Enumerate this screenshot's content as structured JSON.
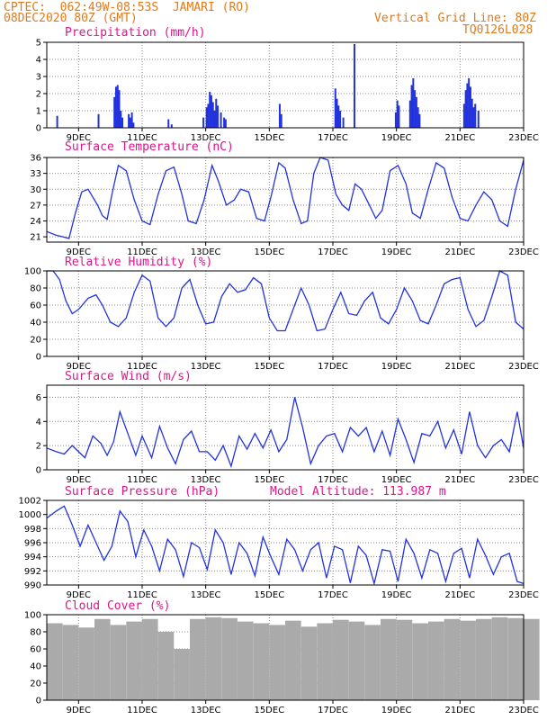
{
  "header": {
    "line1": "CPTEC:  062:49W-08:53S  JAMARI (RO)",
    "line2": "08DEC2020 80Z (GMT)",
    "grid_note": "Vertical Grid Line: 80Z",
    "code": "TQ0126L028"
  },
  "panels": {
    "precip": {
      "title": "Precipitation (mm/h)"
    },
    "temp": {
      "title": "Surface Temperature (nC)"
    },
    "rh": {
      "title": "Relative Humidity (%)"
    },
    "wind": {
      "title": "Surface Wind (m/s)"
    },
    "press": {
      "title": "Surface Pressure (hPa)",
      "altitude": "Model Altitude: 113.987 m"
    },
    "cloud": {
      "title": "Cloud Cover (%)"
    }
  },
  "colors": {
    "line": "#2233dd",
    "cloud": "#aaaaaa",
    "header": "#e07a1c",
    "title": "#e0148c"
  },
  "chart_data": [
    {
      "type": "bar",
      "title": "Precipitation (mm/h)",
      "x_ticks": [
        "9DEC",
        "11DEC",
        "13DEC",
        "15DEC",
        "17DEC",
        "19DEC",
        "21DEC",
        "23DEC"
      ],
      "ylim": [
        0,
        5
      ],
      "y_ticks": [
        0,
        1,
        2,
        3,
        4,
        5
      ],
      "x_unit": "days since 08DEC2020 00Z",
      "bars": [
        [
          0.3,
          0.7
        ],
        [
          1.6,
          0.8
        ],
        [
          2.1,
          1.8
        ],
        [
          2.15,
          2.4
        ],
        [
          2.2,
          2.5
        ],
        [
          2.25,
          2.2
        ],
        [
          2.3,
          1.0
        ],
        [
          2.35,
          0.6
        ],
        [
          2.55,
          0.8
        ],
        [
          2.6,
          0.6
        ],
        [
          2.65,
          0.9
        ],
        [
          2.7,
          0.3
        ],
        [
          3.8,
          0.5
        ],
        [
          3.9,
          0.2
        ],
        [
          4.9,
          0.6
        ],
        [
          5.0,
          1.2
        ],
        [
          5.05,
          1.4
        ],
        [
          5.1,
          2.1
        ],
        [
          5.15,
          1.9
        ],
        [
          5.2,
          1.5
        ],
        [
          5.25,
          1.0
        ],
        [
          5.3,
          1.7
        ],
        [
          5.35,
          1.3
        ],
        [
          5.45,
          0.9
        ],
        [
          5.55,
          0.6
        ],
        [
          5.6,
          0.5
        ],
        [
          7.3,
          1.4
        ],
        [
          7.35,
          0.8
        ],
        [
          9.05,
          2.3
        ],
        [
          9.1,
          1.7
        ],
        [
          9.15,
          1.3
        ],
        [
          9.2,
          1.0
        ],
        [
          9.3,
          0.6
        ],
        [
          9.65,
          4.9
        ],
        [
          10.95,
          0.9
        ],
        [
          11.0,
          1.6
        ],
        [
          11.05,
          1.3
        ],
        [
          11.4,
          1.6
        ],
        [
          11.45,
          2.5
        ],
        [
          11.5,
          2.9
        ],
        [
          11.55,
          2.2
        ],
        [
          11.6,
          1.8
        ],
        [
          11.65,
          1.2
        ],
        [
          11.7,
          0.8
        ],
        [
          13.1,
          1.4
        ],
        [
          13.15,
          2.2
        ],
        [
          13.2,
          2.6
        ],
        [
          13.25,
          2.9
        ],
        [
          13.3,
          2.4
        ],
        [
          13.35,
          1.7
        ],
        [
          13.4,
          1.2
        ],
        [
          13.45,
          1.4
        ],
        [
          13.55,
          1.0
        ]
      ]
    },
    {
      "type": "line",
      "title": "Surface Temperature (nC)",
      "x_ticks": [
        "9DEC",
        "11DEC",
        "13DEC",
        "15DEC",
        "17DEC",
        "19DEC",
        "21DEC",
        "23DEC"
      ],
      "ylim": [
        20,
        36
      ],
      "y_ticks": [
        21,
        24,
        27,
        30,
        33,
        36
      ],
      "x": [
        0,
        0.3,
        0.5,
        0.7,
        0.9,
        1.1,
        1.3,
        1.6,
        1.75,
        1.9,
        2.05,
        2.25,
        2.5,
        2.75,
        3.0,
        3.25,
        3.5,
        3.75,
        4.0,
        4.25,
        4.45,
        4.7,
        4.95,
        5.2,
        5.4,
        5.65,
        5.9,
        6.1,
        6.35,
        6.6,
        6.85,
        7.05,
        7.3,
        7.5,
        7.75,
        8.0,
        8.2,
        8.4,
        8.6,
        8.85,
        9.1,
        9.3,
        9.5,
        9.7,
        9.9,
        10.15,
        10.35,
        10.55,
        10.8,
        11.05,
        11.3,
        11.5,
        11.75,
        12.0,
        12.25,
        12.5,
        12.75,
        13.0,
        13.25,
        13.5,
        13.75,
        14.0,
        14.25,
        14.5,
        14.75,
        15.0
      ],
      "y": [
        22,
        21.3,
        21,
        20.7,
        25.5,
        29.5,
        30,
        27,
        25,
        24.3,
        29,
        34.5,
        33.5,
        28,
        24,
        23.3,
        29,
        33.5,
        34.2,
        29,
        24,
        23.5,
        28,
        34.5,
        31.5,
        27,
        28,
        30,
        29.5,
        24.5,
        24,
        28.5,
        35,
        34,
        28,
        23.5,
        24,
        33,
        36,
        35.5,
        29,
        27,
        26,
        31,
        30,
        27,
        24.5,
        26,
        33.5,
        34.5,
        31,
        25.5,
        24.5,
        30,
        35,
        34,
        28.5,
        24.5,
        24,
        27,
        29.5,
        28,
        24,
        23,
        30,
        35.5
      ]
    },
    {
      "type": "line",
      "title": "Relative Humidity (%)",
      "x_ticks": [
        "9DEC",
        "11DEC",
        "13DEC",
        "15DEC",
        "17DEC",
        "19DEC",
        "21DEC",
        "23DEC"
      ],
      "ylim": [
        0,
        100
      ],
      "y_ticks": [
        0,
        20,
        40,
        60,
        80,
        100
      ],
      "x": [
        0,
        0.2,
        0.4,
        0.6,
        0.8,
        1.0,
        1.3,
        1.55,
        1.75,
        2.0,
        2.25,
        2.5,
        2.75,
        3.0,
        3.25,
        3.5,
        3.75,
        4.0,
        4.25,
        4.5,
        4.75,
        5.0,
        5.25,
        5.5,
        5.75,
        6.0,
        6.25,
        6.5,
        6.75,
        7.0,
        7.25,
        7.5,
        7.75,
        8.0,
        8.25,
        8.5,
        8.75,
        9.0,
        9.25,
        9.5,
        9.75,
        10.0,
        10.25,
        10.5,
        10.75,
        11.0,
        11.25,
        11.5,
        11.75,
        12.0,
        12.25,
        12.5,
        12.75,
        13.0,
        13.25,
        13.5,
        13.75,
        14.0,
        14.25,
        14.5,
        14.75,
        15.0
      ],
      "y": [
        100,
        100,
        90,
        65,
        50,
        55,
        68,
        72,
        60,
        40,
        35,
        45,
        75,
        95,
        88,
        45,
        35,
        45,
        80,
        90,
        60,
        38,
        40,
        70,
        85,
        75,
        78,
        92,
        85,
        45,
        30,
        30,
        55,
        80,
        60,
        30,
        32,
        55,
        75,
        50,
        48,
        65,
        75,
        45,
        38,
        55,
        80,
        65,
        42,
        38,
        60,
        85,
        90,
        92,
        55,
        35,
        42,
        70,
        100,
        95,
        40,
        32
      ]
    },
    {
      "type": "line",
      "title": "Surface Wind (m/s)",
      "x_ticks": [
        "9DEC",
        "11DEC",
        "13DEC",
        "15DEC",
        "17DEC",
        "19DEC",
        "21DEC",
        "23DEC"
      ],
      "ylim": [
        0,
        7
      ],
      "y_ticks": [
        0,
        2,
        4,
        6
      ],
      "x": [
        0,
        0.3,
        0.55,
        0.8,
        1.0,
        1.2,
        1.45,
        1.7,
        1.9,
        2.1,
        2.3,
        2.55,
        2.8,
        3.0,
        3.3,
        3.55,
        3.8,
        4.05,
        4.3,
        4.55,
        4.8,
        5.05,
        5.3,
        5.55,
        5.8,
        6.05,
        6.3,
        6.55,
        6.8,
        7.05,
        7.3,
        7.55,
        7.8,
        8.05,
        8.3,
        8.55,
        8.8,
        9.05,
        9.3,
        9.55,
        9.8,
        10.05,
        10.3,
        10.55,
        10.8,
        11.05,
        11.3,
        11.55,
        11.8,
        12.05,
        12.3,
        12.55,
        12.8,
        13.05,
        13.3,
        13.55,
        13.8,
        14.05,
        14.3,
        14.55,
        14.8,
        15.0
      ],
      "y": [
        1.8,
        1.5,
        1.3,
        2.0,
        1.5,
        1.0,
        2.8,
        2.2,
        1.2,
        2.3,
        4.8,
        3.0,
        1.2,
        2.8,
        1.0,
        3.6,
        1.8,
        0.5,
        2.5,
        3.2,
        1.5,
        1.5,
        0.8,
        2.0,
        0.3,
        2.8,
        1.7,
        3.0,
        1.8,
        3.3,
        1.5,
        2.5,
        6.0,
        3.5,
        0.5,
        2.0,
        2.8,
        3.0,
        1.5,
        3.5,
        2.8,
        3.5,
        1.5,
        3.2,
        1.2,
        4.2,
        2.5,
        0.6,
        3.0,
        2.8,
        4.0,
        1.8,
        3.3,
        1.3,
        4.8,
        2.0,
        1.0,
        2.0,
        2.5,
        1.5,
        4.8,
        1.8
      ]
    },
    {
      "type": "line",
      "title": "Surface Pressure (hPa)",
      "x_ticks": [
        "9DEC",
        "11DEC",
        "13DEC",
        "15DEC",
        "17DEC",
        "19DEC",
        "21DEC",
        "23DEC"
      ],
      "ylim": [
        990,
        1002
      ],
      "y_ticks": [
        990,
        992,
        994,
        996,
        998,
        1000,
        1002
      ],
      "x": [
        0,
        0.3,
        0.55,
        0.8,
        1.05,
        1.3,
        1.55,
        1.8,
        2.05,
        2.3,
        2.55,
        2.8,
        3.05,
        3.3,
        3.55,
        3.8,
        4.05,
        4.3,
        4.55,
        4.8,
        5.05,
        5.3,
        5.55,
        5.8,
        6.05,
        6.3,
        6.55,
        6.8,
        7.05,
        7.3,
        7.55,
        7.8,
        8.05,
        8.3,
        8.55,
        8.8,
        9.05,
        9.3,
        9.55,
        9.8,
        10.05,
        10.3,
        10.55,
        10.8,
        11.05,
        11.3,
        11.55,
        11.8,
        12.05,
        12.3,
        12.55,
        12.8,
        13.05,
        13.3,
        13.55,
        13.8,
        14.05,
        14.3,
        14.55,
        14.8,
        15.0
      ],
      "y": [
        999.5,
        1000.5,
        1001.2,
        998.5,
        995.5,
        998.5,
        996.0,
        993.5,
        995.5,
        1000.5,
        999.0,
        994.0,
        997.8,
        995.5,
        992.0,
        996.5,
        995.0,
        991.2,
        996.0,
        995.3,
        992.2,
        997.8,
        996.0,
        991.5,
        996.0,
        994.5,
        991.3,
        996.8,
        994.0,
        991.5,
        996.5,
        995.0,
        992.0,
        995.0,
        996.0,
        991.0,
        995.5,
        995.0,
        990.3,
        995.5,
        994.2,
        990.2,
        995.0,
        994.8,
        990.5,
        996.5,
        994.5,
        991.0,
        995.0,
        994.5,
        990.5,
        994.5,
        995.2,
        991.0,
        996.5,
        994.2,
        991.5,
        994.0,
        994.5,
        990.5,
        990.2
      ]
    },
    {
      "type": "bar",
      "title": "Cloud Cover (%)",
      "x_ticks": [
        "9DEC",
        "11DEC",
        "13DEC",
        "15DEC",
        "17DEC",
        "19DEC",
        "21DEC",
        "23DEC"
      ],
      "ylim": [
        0,
        100
      ],
      "y_ticks": [
        0,
        20,
        40,
        60,
        80,
        100
      ],
      "x": [
        0,
        0.5,
        1.0,
        1.5,
        2.0,
        2.5,
        3.0,
        3.5,
        4.0,
        4.5,
        5.0,
        5.5,
        6.0,
        6.5,
        7.0,
        7.5,
        8.0,
        8.5,
        9.0,
        9.5,
        10.0,
        10.5,
        11.0,
        11.5,
        12.0,
        12.5,
        13.0,
        13.5,
        14.0,
        14.5,
        15.0
      ],
      "values": [
        90,
        88,
        85,
        95,
        88,
        92,
        95,
        80,
        60,
        95,
        97,
        96,
        92,
        90,
        88,
        93,
        86,
        90,
        94,
        92,
        88,
        95,
        94,
        90,
        92,
        95,
        93,
        95,
        97,
        96,
        95
      ]
    }
  ]
}
